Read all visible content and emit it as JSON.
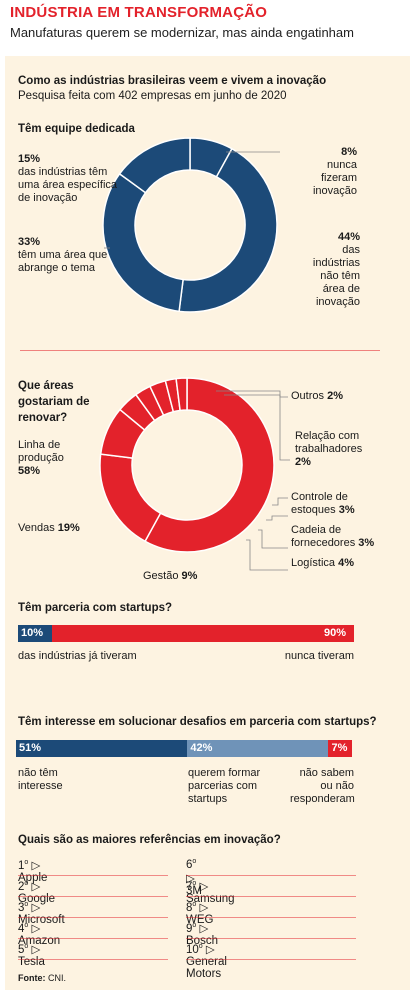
{
  "header": {
    "title": "INDÚSTRIA EM TRANSFORMAÇÃO",
    "subtitle": "Manufaturas querem se modernizar, mas ainda engatinham"
  },
  "intro": {
    "title": "Como as indústrias brasileiras veem e vivem a inovação",
    "subtitle": "Pesquisa feita com 402 empresas em junho de 2020"
  },
  "colors": {
    "blue": "#1c4a78",
    "red": "#e3222b",
    "light_blue": "#6f93b8"
  },
  "chart_data": [
    {
      "type": "pie",
      "title": "Têm equipe dedicada",
      "slices": [
        {
          "value": 8,
          "pct": "8%",
          "text": "nunca fizeram inovação"
        },
        {
          "value": 44,
          "pct": "44%",
          "text": "das indústrias não têm área de inovação"
        },
        {
          "value": 33,
          "pct": "33%",
          "text": "têm uma área que abrange o tema"
        },
        {
          "value": 15,
          "pct": "15%",
          "text": "das indústrias têm uma área específica de inovação"
        }
      ]
    },
    {
      "type": "pie",
      "title": "Que áreas gostariam de renovar?",
      "slices": [
        {
          "name": "Linha de produção",
          "value": 58,
          "pct": "58%"
        },
        {
          "name": "Vendas",
          "value": 19,
          "pct": "19%"
        },
        {
          "name": "Gestão",
          "value": 9,
          "pct": "9%"
        },
        {
          "name": "Logística",
          "value": 4,
          "pct": "4%"
        },
        {
          "name": "Cadeia de fornecedores",
          "value": 3,
          "pct": "3%"
        },
        {
          "name": "Controle de estoques",
          "value": 3,
          "pct": "3%"
        },
        {
          "name": "Relação com trabalhadores",
          "value": 2,
          "pct": "2%"
        },
        {
          "name": "Outros",
          "value": 2,
          "pct": "2%"
        }
      ]
    },
    {
      "type": "bar",
      "title": "Têm parceria com startups?",
      "segments": [
        {
          "value": 10,
          "pct": "10%",
          "label": "das indústrias já tiveram"
        },
        {
          "value": 90,
          "pct": "90%",
          "label": "nunca tiveram"
        }
      ]
    },
    {
      "type": "bar",
      "title": "Têm interesse em solucionar desafios em parceria com startups?",
      "segments": [
        {
          "value": 51,
          "pct": "51%",
          "label": "não têm interesse"
        },
        {
          "value": 42,
          "pct": "42%",
          "label": "querem formar parcerias com startups"
        },
        {
          "value": 7,
          "pct": "7%",
          "label": "não sabem ou não responderam"
        }
      ]
    },
    {
      "type": "table",
      "title": "Quais são as maiores referências em inovação?",
      "rows": [
        {
          "rank": "1",
          "name": "Apple"
        },
        {
          "rank": "2",
          "name": "Google"
        },
        {
          "rank": "3",
          "name": "Microsoft"
        },
        {
          "rank": "4",
          "name": "Amazon"
        },
        {
          "rank": "5",
          "name": "Tesla"
        },
        {
          "rank": "6",
          "name": "3M"
        },
        {
          "rank": "7",
          "name": "Samsung"
        },
        {
          "rank": "8",
          "name": "WEG"
        },
        {
          "rank": "9",
          "name": "Bosch"
        },
        {
          "rank": "10",
          "name": "General Motors"
        }
      ]
    }
  ],
  "source": {
    "label": "Fonte:",
    "text": "CNI."
  }
}
